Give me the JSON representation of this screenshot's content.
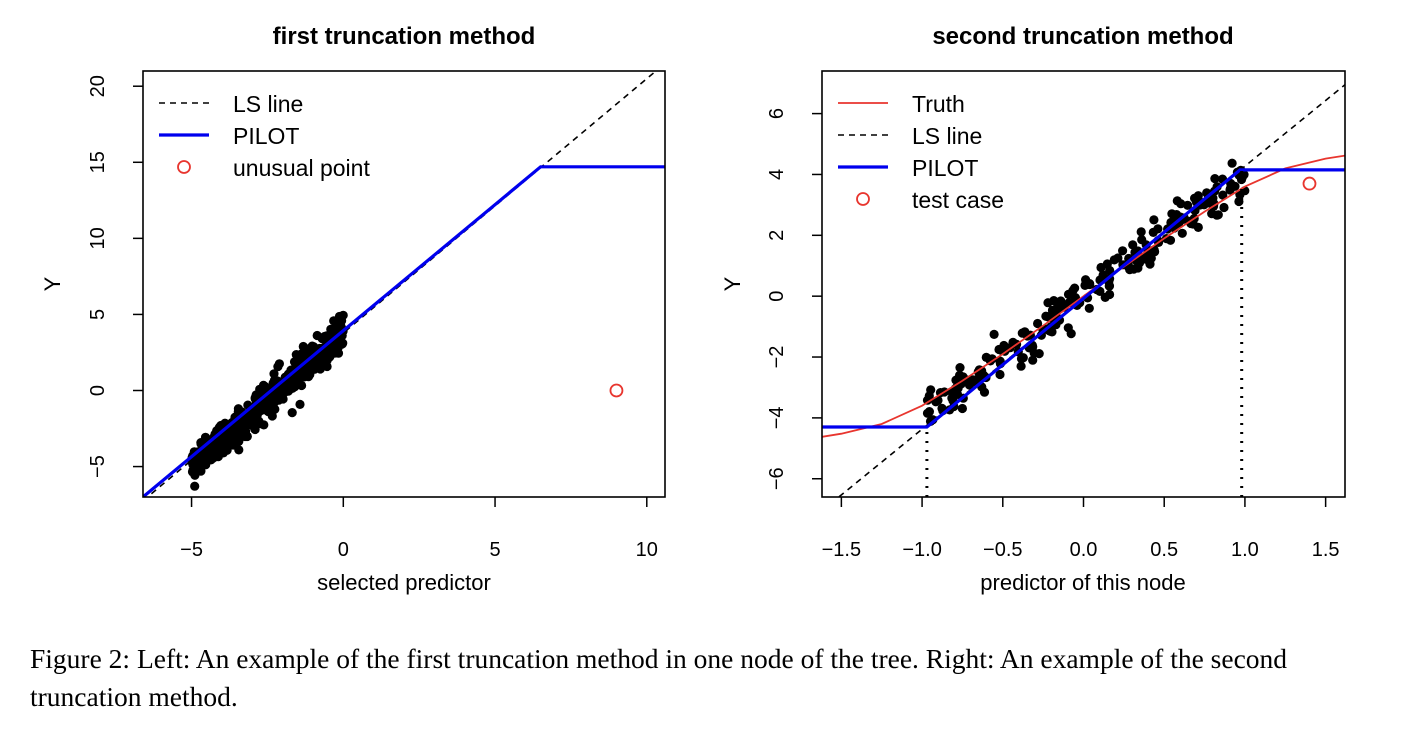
{
  "chart_data": [
    {
      "type": "scatter",
      "title": "first truncation method",
      "xlabel": "selected predictor",
      "ylabel": "Y",
      "xlim": [
        -6.6,
        10.6
      ],
      "ylim": [
        -7.0,
        21.0
      ],
      "xticks": [
        -5,
        0,
        5,
        10
      ],
      "xtick_labels": [
        "−5",
        "0",
        "5",
        "10"
      ],
      "yticks": [
        -5,
        0,
        5,
        10,
        15,
        20
      ],
      "ytick_labels": [
        "−5",
        "0",
        "5",
        "10",
        "15",
        "20"
      ],
      "grid": false,
      "legend_position": "top-left",
      "legend": [
        {
          "label": "LS line",
          "style": "dashed-line",
          "color": "#000000"
        },
        {
          "label": "PILOT",
          "style": "solid-line",
          "color": "#0000ee"
        },
        {
          "label": "unusual point",
          "style": "circle",
          "color": "#e8352e"
        }
      ],
      "series": [
        {
          "name": "LS line",
          "kind": "line",
          "style": "dashed",
          "color": "#000000",
          "x": [
            -6.6,
            10.6
          ],
          "y": [
            -7.25,
            21.5
          ]
        },
        {
          "name": "PILOT",
          "kind": "line",
          "style": "solid",
          "color": "#0000ee",
          "x": [
            -6.6,
            6.5,
            10.6
          ],
          "y": [
            -7.0,
            14.7,
            14.7
          ]
        },
        {
          "name": "unusual point",
          "kind": "point",
          "style": "open-circle",
          "color": "#e8352e",
          "x": [
            9.0
          ],
          "y": [
            0.0
          ]
        },
        {
          "name": "",
          "kind": "cloud",
          "style": "filled-dots",
          "color": "#000000",
          "x_range": [
            -5.0,
            0.0
          ],
          "slope": 1.75,
          "intercept": 3.8,
          "noise": 0.55,
          "count": 520
        }
      ]
    },
    {
      "type": "scatter",
      "title": "second truncation method",
      "xlabel": "predictor of this node",
      "ylabel": "Y",
      "xlim": [
        -1.62,
        1.62
      ],
      "ylim": [
        -6.6,
        7.4
      ],
      "xticks": [
        -1.5,
        -1.0,
        -0.5,
        0.0,
        0.5,
        1.0,
        1.5
      ],
      "xtick_labels": [
        "−1.5",
        "−1.0",
        "−0.5",
        "0.0",
        "0.5",
        "1.0",
        "1.5"
      ],
      "yticks": [
        -6,
        -4,
        -2,
        0,
        2,
        4,
        6
      ],
      "ytick_labels": [
        "−6",
        "−4",
        "−2",
        "0",
        "2",
        "4",
        "6"
      ],
      "grid": false,
      "legend_position": "top-left",
      "legend": [
        {
          "label": "Truth",
          "style": "solid-line",
          "color": "#e8352e"
        },
        {
          "label": "LS line",
          "style": "dashed-line",
          "color": "#000000"
        },
        {
          "label": "PILOT",
          "style": "solid-line",
          "color": "#0000ee"
        },
        {
          "label": "test case",
          "style": "circle",
          "color": "#e8352e"
        }
      ],
      "series": [
        {
          "name": "Truth",
          "kind": "line",
          "style": "solid",
          "color": "#e8352e",
          "x": [
            -1.62,
            -1.5,
            -1.25,
            -1.0,
            -0.75,
            -0.5,
            -0.25,
            0.0,
            0.25,
            0.5,
            0.75,
            1.0,
            1.25,
            1.5,
            1.62
          ],
          "y": [
            -4.62,
            -4.52,
            -4.2,
            -3.6,
            -2.78,
            -1.9,
            -0.97,
            0.0,
            0.97,
            1.9,
            2.78,
            3.6,
            4.2,
            4.52,
            4.62
          ]
        },
        {
          "name": "LS line",
          "kind": "line",
          "style": "dashed",
          "color": "#000000",
          "x": [
            -1.62,
            1.62
          ],
          "y": [
            -7.05,
            6.95
          ]
        },
        {
          "name": "PILOT",
          "kind": "line",
          "style": "solid",
          "color": "#0000ee",
          "x": [
            -1.62,
            -0.97,
            0.97,
            1.62
          ],
          "y": [
            -4.3,
            -4.3,
            4.15,
            4.15
          ]
        },
        {
          "name": "",
          "kind": "vline",
          "style": "dotted",
          "color": "#000000",
          "x": [
            -0.97,
            -0.97
          ],
          "y": [
            -6.6,
            -4.3
          ]
        },
        {
          "name": "",
          "kind": "vline",
          "style": "dotted",
          "color": "#000000",
          "x": [
            0.98,
            0.98
          ],
          "y": [
            -6.6,
            4.15
          ]
        },
        {
          "name": "test case",
          "kind": "point",
          "style": "open-circle",
          "color": "#e8352e",
          "x": [
            1.4
          ],
          "y": [
            3.7
          ]
        },
        {
          "name": "",
          "kind": "cloud",
          "style": "filled-dots",
          "color": "#000000",
          "x_range": [
            -0.97,
            1.0
          ],
          "slope": 4.0,
          "intercept": 0.0,
          "noise": 0.32,
          "count": 230
        }
      ]
    }
  ],
  "caption": "Figure 2: Left: An example of the first truncation method in one node of the tree. Right: An example of the second truncation method."
}
